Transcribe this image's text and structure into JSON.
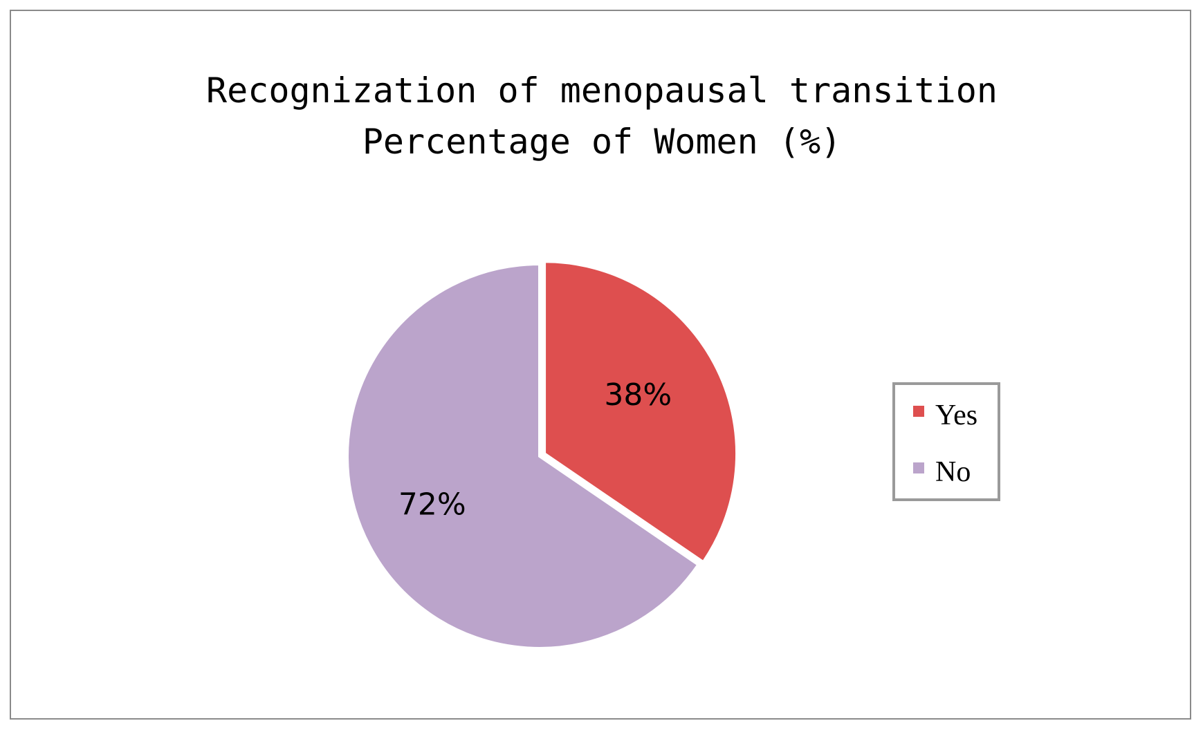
{
  "chart_data": {
    "type": "pie",
    "title_lines": [
      "Recognization of menopausal transition",
      "Percentage of Women (%)"
    ],
    "slices": [
      {
        "label": "Yes",
        "value": 38,
        "display": "38%",
        "color": "#de4f4f"
      },
      {
        "label": "No",
        "value": 72,
        "display": "72%",
        "color": "#bba4cb"
      }
    ],
    "legend": {
      "placement": "right",
      "items": [
        "Yes",
        "No"
      ]
    },
    "start_angle_deg": 0,
    "direction": "clockwise"
  }
}
